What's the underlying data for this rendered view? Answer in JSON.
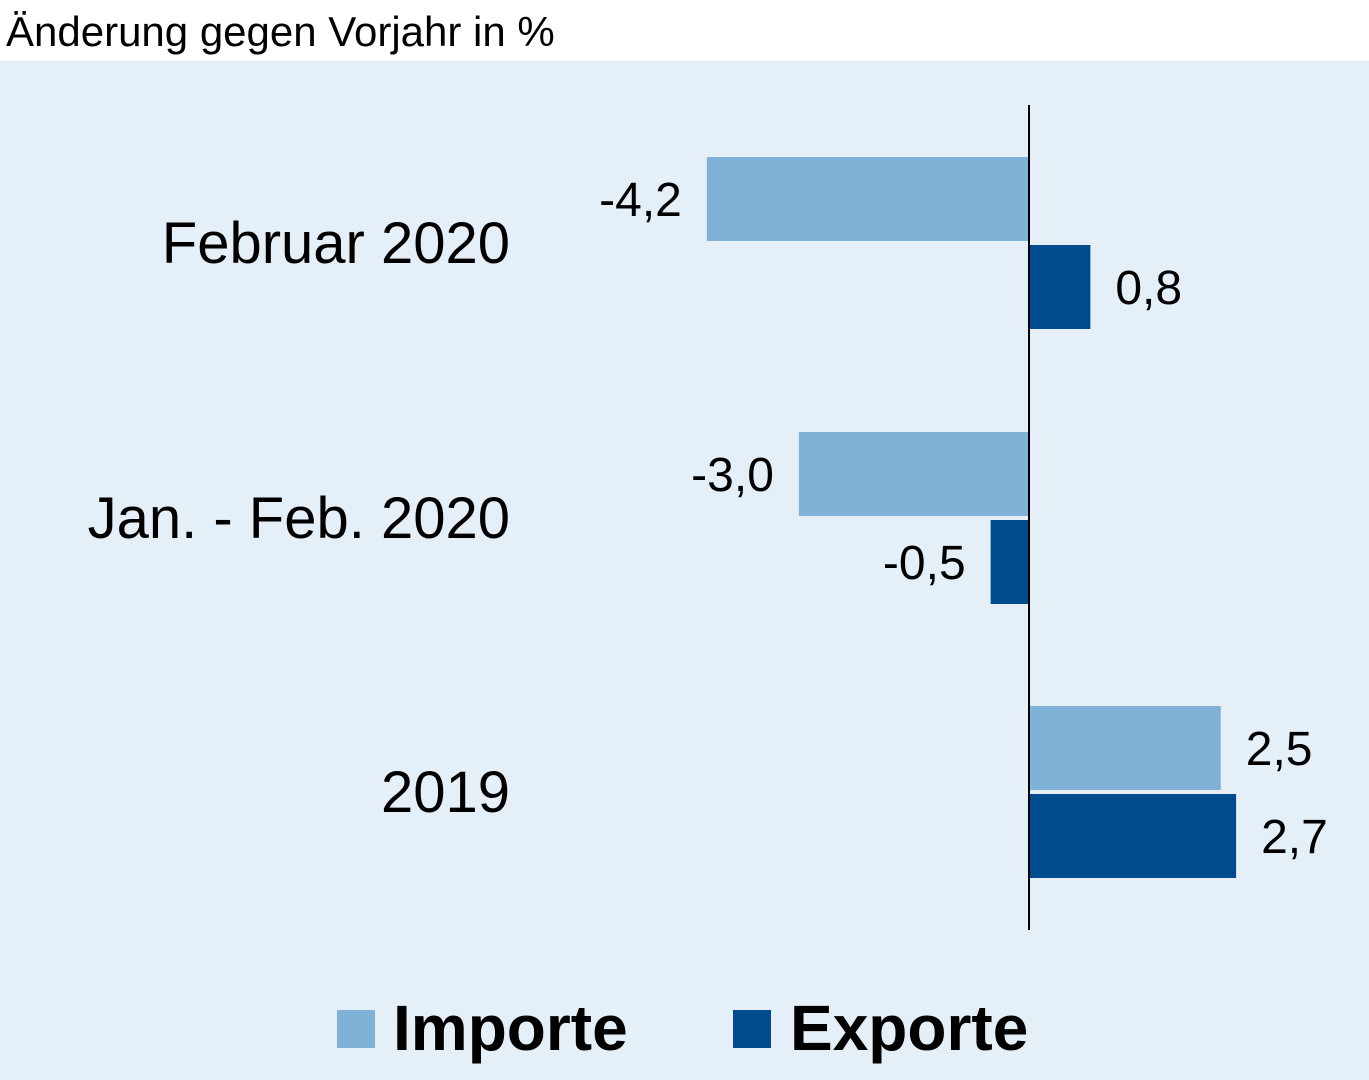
{
  "chart_data": {
    "type": "bar",
    "orientation": "horizontal",
    "title": "Änderung gegen Vorjahr in %",
    "categories": [
      "Februar 2020",
      "Jan. - Feb. 2020",
      "2019"
    ],
    "series": [
      {
        "name": "Importe",
        "color": "#80b1d6",
        "values": [
          -4.2,
          -3.0,
          2.5
        ],
        "labels": [
          "-4,2",
          "-3,0",
          "2,5"
        ]
      },
      {
        "name": "Exporte",
        "color": "#004b8e",
        "values": [
          0.8,
          -0.5,
          2.7
        ],
        "labels": [
          "0,8",
          "-0,5",
          "2,7"
        ]
      }
    ],
    "xlim": [
      -4.2,
      2.7
    ],
    "grid": false,
    "legend": "bottom",
    "background": "#e4eff7"
  }
}
